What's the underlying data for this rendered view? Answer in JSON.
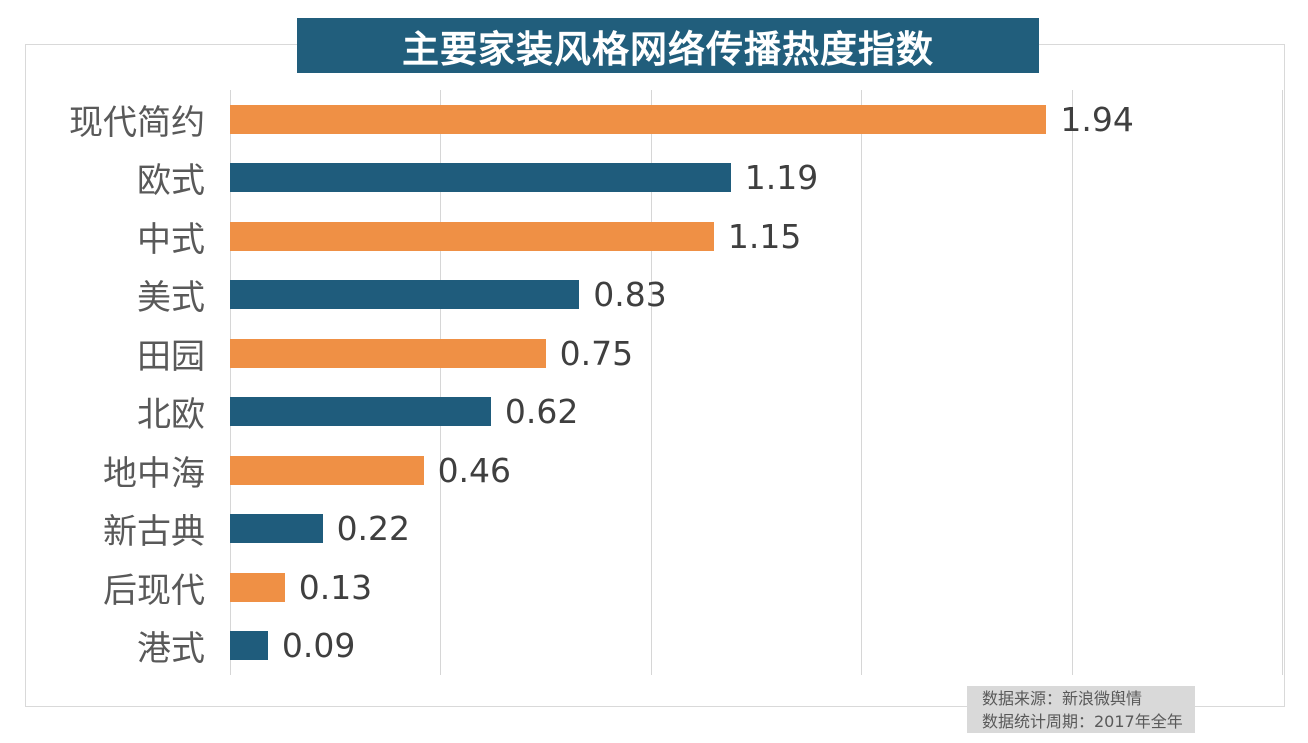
{
  "chart_data": {
    "type": "bar",
    "orientation": "horizontal",
    "title": "主要家装风格网络传播热度指数",
    "categories": [
      "现代简约",
      "欧式",
      "中式",
      "美式",
      "田园",
      "北欧",
      "地中海",
      "新古典",
      "后现代",
      "港式"
    ],
    "values": [
      1.94,
      1.19,
      1.15,
      0.83,
      0.75,
      0.62,
      0.46,
      0.22,
      0.13,
      0.09
    ],
    "value_labels": [
      "1.94",
      "1.19",
      "1.15",
      "0.83",
      "0.75",
      "0.62",
      "0.46",
      "0.22",
      "0.13",
      "0.09"
    ],
    "xlabel": "",
    "ylabel": "",
    "xlim": [
      0,
      2.5
    ],
    "grid_interval": 0.5,
    "gridlines": [
      0,
      0.5,
      1.0,
      1.5,
      2.0,
      2.5
    ],
    "grid_on": true,
    "legend": null,
    "bar_colors_alternating": [
      "#EF9045",
      "#1F5C7C"
    ]
  },
  "source_note": {
    "line1": "数据来源：新浪微舆情",
    "line2": "数据统计周期：2017年全年"
  },
  "colors": {
    "title_bg": "#215E7C",
    "title_text": "#FFFFFF",
    "bar_orange": "#EF9045",
    "bar_teal": "#1F5C7C",
    "grid": "#D6D6D6",
    "border": "#D9D9D9",
    "category_label": "#595959",
    "value_label": "#3F3F3F",
    "note_bg": "#D9D9D9",
    "note_text": "#595959"
  }
}
